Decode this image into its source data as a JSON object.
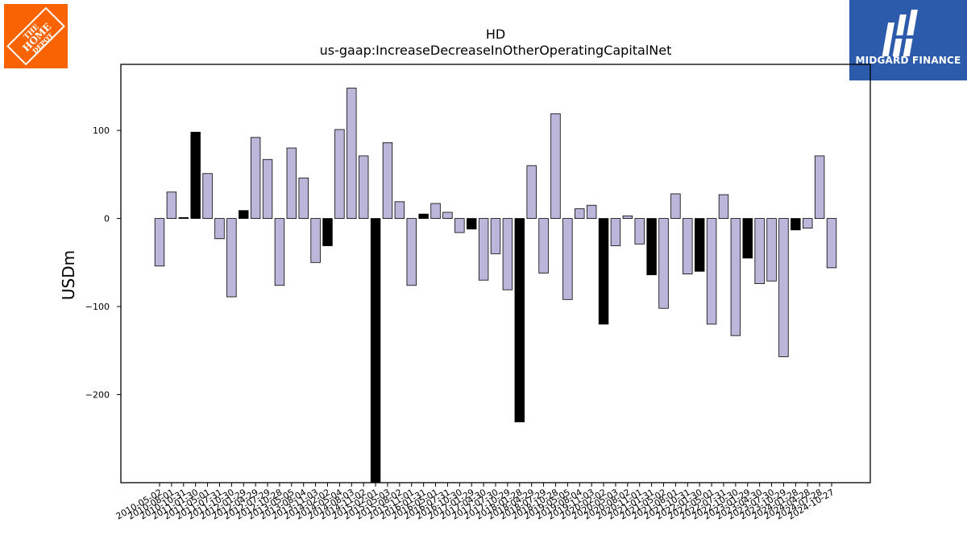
{
  "logos": {
    "left_text": "THE HOME DEPOT",
    "left_color": "#f96302",
    "right_text": "MIDGARD FINANCE",
    "right_color": "#2b5baa"
  },
  "chart_data": {
    "type": "bar",
    "title": "HD",
    "subtitle": "us-gaap:IncreaseDecreaseInOtherOperatingCapitalNet",
    "xlabel": "",
    "ylabel": "USDm",
    "ylim": [
      -300,
      175
    ],
    "yticks": [
      100,
      0,
      -100,
      -200
    ],
    "ytick_labels": [
      "100",
      "0",
      "−100",
      "−200"
    ],
    "grid": false,
    "colors": {
      "positive_series": "#bcb7da",
      "highlight": "#000000",
      "edge": "#000000"
    },
    "categories": [
      "2010-05-02",
      "2010-08-01",
      "2010-10-31",
      "2011-01-30",
      "2011-05-01",
      "2011-07-31",
      "2011-10-30",
      "2012-01-29",
      "2012-04-29",
      "2012-07-29",
      "2012-10-28",
      "2013-05-05",
      "2013-08-04",
      "2013-11-03",
      "2014-02-02",
      "2014-05-04",
      "2014-08-03",
      "2014-11-02",
      "2015-02-01",
      "2015-05-03",
      "2015-08-02",
      "2015-11-01",
      "2016-01-31",
      "2016-05-01",
      "2016-07-31",
      "2016-10-30",
      "2017-01-29",
      "2017-04-30",
      "2017-07-30",
      "2017-10-29",
      "2018-01-28",
      "2018-04-29",
      "2018-07-29",
      "2018-10-28",
      "2019-05-05",
      "2019-08-04",
      "2019-11-03",
      "2020-02-02",
      "2020-05-03",
      "2020-08-02",
      "2020-11-01",
      "2021-01-31",
      "2021-05-02",
      "2021-08-01",
      "2021-10-31",
      "2022-01-30",
      "2022-05-01",
      "2022-07-31",
      "2022-10-30",
      "2023-01-29",
      "2023-04-30",
      "2023-07-30",
      "2023-10-29",
      "2024-01-28",
      "2024-04-28",
      "2024-07-28",
      "2024-10-27"
    ],
    "values": [
      -54,
      30,
      1,
      98,
      51,
      -23,
      -89,
      9,
      92,
      67,
      -76,
      80,
      46,
      -50,
      -31,
      101,
      148,
      71,
      -300,
      86,
      19,
      -76,
      5,
      17,
      7,
      -16,
      -12,
      -70,
      -40,
      -81,
      -231,
      60,
      -62,
      119,
      -92,
      11,
      15,
      -120,
      -31,
      3,
      -29,
      -64,
      -102,
      28,
      -63,
      -60,
      -120,
      27,
      -133,
      -45,
      -74,
      -71,
      -157,
      -13,
      -11,
      71,
      -56
    ],
    "highlight": [
      0,
      0,
      1,
      1,
      0,
      0,
      0,
      1,
      0,
      0,
      0,
      0,
      0,
      0,
      1,
      0,
      0,
      0,
      1,
      0,
      0,
      0,
      1,
      0,
      0,
      0,
      1,
      0,
      0,
      0,
      1,
      0,
      0,
      0,
      0,
      0,
      0,
      1,
      0,
      0,
      0,
      1,
      0,
      0,
      0,
      1,
      0,
      0,
      0,
      1,
      0,
      0,
      0,
      1,
      0,
      0,
      0
    ]
  }
}
